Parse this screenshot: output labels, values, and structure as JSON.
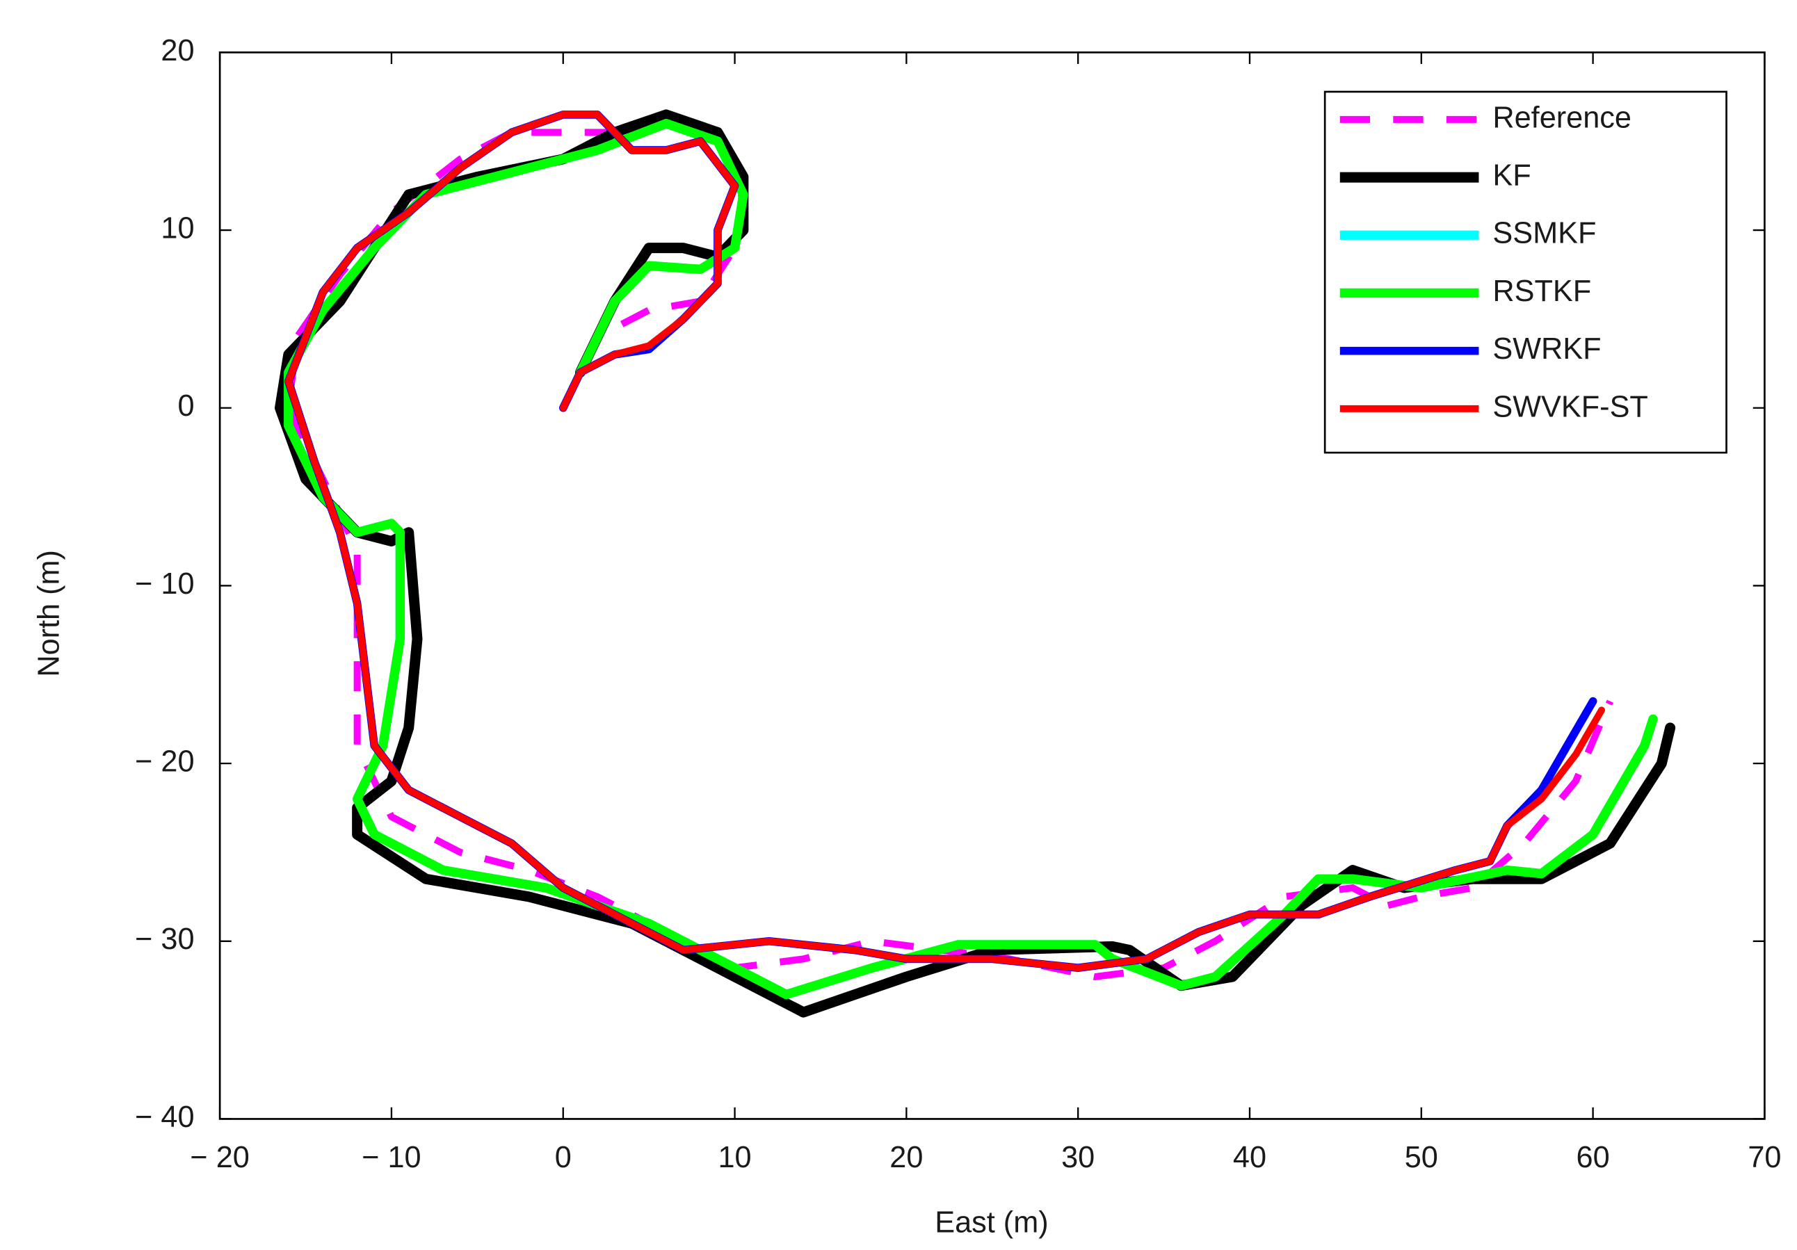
{
  "chart_data": {
    "type": "line",
    "xlabel": "East (m)",
    "ylabel": "North (m)",
    "xlim": [
      -20,
      70
    ],
    "ylim": [
      -40,
      20
    ],
    "xticks": [
      {
        "value": -20,
        "label": "− 20"
      },
      {
        "value": -10,
        "label": "− 10"
      },
      0,
      10,
      20,
      30,
      40,
      50,
      60,
      70
    ],
    "yticks": [
      {
        "value": -40,
        "label": "− 40"
      },
      {
        "value": -30,
        "label": "− 30"
      },
      {
        "value": -20,
        "label": "− 20"
      },
      {
        "value": -10,
        "label": "− 10"
      },
      0,
      10,
      20
    ],
    "legend": "upper right",
    "series": [
      {
        "name": "Reference",
        "color": "#ff00ff",
        "dashed": true,
        "x": [
          0,
          2,
          5,
          8,
          10,
          10.5,
          9,
          6,
          3,
          0,
          -3,
          -6,
          -10,
          -13,
          -15.5,
          -16,
          -14,
          -12,
          -12,
          -12,
          -10,
          -6,
          -2,
          2,
          7,
          10,
          14,
          18,
          22,
          26,
          31,
          35,
          38,
          42,
          46,
          48,
          50,
          53,
          56,
          59,
          61
        ],
        "y": [
          0,
          4,
          5.5,
          6,
          9,
          12.5,
          15,
          16.5,
          15.5,
          15.5,
          15.5,
          14,
          11,
          7.5,
          4,
          0,
          -4,
          -8,
          -13,
          -19,
          -23,
          -25,
          -26,
          -27.5,
          -30,
          -31.5,
          -31,
          -30,
          -30.5,
          -31,
          -32,
          -31.5,
          -30,
          -27.5,
          -27,
          -28,
          -27.5,
          -27,
          -24.5,
          -21,
          -16.5
        ]
      },
      {
        "name": "KF",
        "color": "#000000",
        "x": [
          1,
          3,
          5,
          7,
          9,
          10.5,
          10.5,
          9,
          6,
          3,
          0,
          -5,
          -9,
          -11,
          -13,
          -16,
          -16.5,
          -15,
          -12,
          -10,
          -9,
          -8.5,
          -9,
          -10,
          -12,
          -12,
          -8,
          -2,
          4,
          10,
          14,
          20,
          25,
          32,
          33,
          36,
          39,
          43,
          46,
          49,
          53,
          57,
          61,
          64,
          64.5
        ],
        "y": [
          2,
          6,
          9,
          9,
          8.5,
          10,
          13,
          15.5,
          16.5,
          15.5,
          14,
          13,
          12,
          9,
          6,
          3,
          0,
          -4,
          -7,
          -7.5,
          -7,
          -13,
          -18,
          -21,
          -22.5,
          -24,
          -26.5,
          -27.5,
          -29,
          -32,
          -34,
          -32,
          -30.5,
          -30.3,
          -30.5,
          -32.5,
          -32,
          -28,
          -26,
          -27,
          -26.5,
          -26.5,
          -24.5,
          -20,
          -18
        ]
      },
      {
        "name": "SSMKF",
        "color": "#00ffff",
        "x": [
          1,
          3,
          5,
          8,
          10,
          10.5,
          9,
          6,
          2,
          -2,
          -8,
          -11,
          -14,
          -16,
          -16,
          -14,
          -12,
          -10,
          -9.5,
          -9.5,
          -10.5,
          -12,
          -11,
          -7,
          -1,
          5,
          9,
          13,
          18,
          23,
          31,
          32,
          36,
          38,
          42,
          44,
          46,
          50,
          55,
          57,
          60,
          63,
          63.5
        ],
        "y": [
          2,
          6,
          8,
          7.8,
          9,
          12,
          15,
          16,
          14.5,
          13.5,
          12,
          9,
          5.5,
          2,
          -1,
          -5,
          -7,
          -6.5,
          -7,
          -13,
          -19,
          -22,
          -24,
          -26,
          -27,
          -29,
          -31,
          -33,
          -31.5,
          -30.2,
          -30.2,
          -31,
          -32.5,
          -32,
          -28.5,
          -26.5,
          -26.5,
          -27,
          -26,
          -26.2,
          -24,
          -19,
          -17.5
        ]
      },
      {
        "name": "RSTKF",
        "color": "#00ff00",
        "x": [
          1,
          3,
          5,
          8,
          10,
          10.5,
          9,
          6,
          2,
          -2,
          -8,
          -11,
          -14,
          -16,
          -16,
          -14,
          -12,
          -10,
          -9.5,
          -9.5,
          -10.5,
          -12,
          -11,
          -7,
          -1,
          5,
          9,
          13,
          18,
          23,
          31,
          32,
          36,
          38,
          42,
          44,
          46,
          50,
          55,
          57,
          60,
          63,
          63.5
        ],
        "y": [
          2,
          6,
          8,
          7.8,
          9,
          12,
          15,
          16,
          14.5,
          13.5,
          12,
          9,
          5.5,
          2,
          -1,
          -5,
          -7,
          -6.5,
          -7,
          -13,
          -19,
          -22,
          -24,
          -26,
          -27,
          -29,
          -31,
          -33,
          -31.5,
          -30.2,
          -30.2,
          -31,
          -32.5,
          -32,
          -28.5,
          -26.5,
          -26.5,
          -27,
          -26,
          -26.2,
          -24,
          -19,
          -17.5
        ]
      },
      {
        "name": "SWRKF",
        "color": "#0000ff",
        "x": [
          0,
          1,
          3,
          5,
          7,
          9,
          9,
          10,
          8,
          6,
          4,
          2,
          0,
          -3,
          -6,
          -9,
          -12,
          -14,
          -15,
          -16,
          -14.5,
          -13,
          -12,
          -11.5,
          -11,
          -9,
          -6,
          -3,
          0,
          4,
          7,
          12,
          17,
          20,
          25,
          30,
          34,
          37,
          40,
          44,
          47,
          52,
          54,
          55,
          57,
          58.5,
          60
        ],
        "y": [
          0,
          2,
          3,
          3.3,
          5,
          7,
          10,
          12.5,
          15,
          14.5,
          14.5,
          16.5,
          16.5,
          15.5,
          13.5,
          11,
          9,
          6.5,
          4,
          1.5,
          -3,
          -7,
          -11,
          -15,
          -19,
          -21.5,
          -23,
          -24.5,
          -27,
          -29,
          -30.5,
          -30,
          -30.5,
          -31,
          -31,
          -31.5,
          -31,
          -29.5,
          -28.5,
          -28.5,
          -27.5,
          -26,
          -25.5,
          -23.5,
          -21.5,
          -19,
          -16.5
        ]
      },
      {
        "name": "SWVKF-ST",
        "color": "#ff0000",
        "x": [
          0,
          1,
          3,
          5,
          7,
          9,
          9,
          10,
          8,
          6,
          4,
          2,
          0,
          -3,
          -6,
          -9,
          -12,
          -14,
          -15,
          -16,
          -14.5,
          -13,
          -12,
          -11.5,
          -11,
          -9,
          -6,
          -3,
          0,
          4,
          7,
          12,
          17,
          20,
          25,
          30,
          34,
          37,
          40,
          44,
          47,
          52,
          54,
          55,
          57,
          59,
          60.5
        ],
        "y": [
          0,
          2,
          3,
          3.5,
          5,
          7,
          10,
          12.5,
          15,
          14.5,
          14.5,
          16.5,
          16.5,
          15.5,
          13.5,
          11,
          9,
          6.5,
          4,
          1.5,
          -3,
          -7,
          -11,
          -15,
          -19,
          -21.5,
          -23,
          -24.5,
          -27,
          -29,
          -30.5,
          -30,
          -30.5,
          -31,
          -31,
          -31.5,
          -31,
          -29.5,
          -28.5,
          -28.5,
          -27.5,
          -26,
          -25.5,
          -23.5,
          -22,
          -19.5,
          -17
        ]
      }
    ]
  }
}
